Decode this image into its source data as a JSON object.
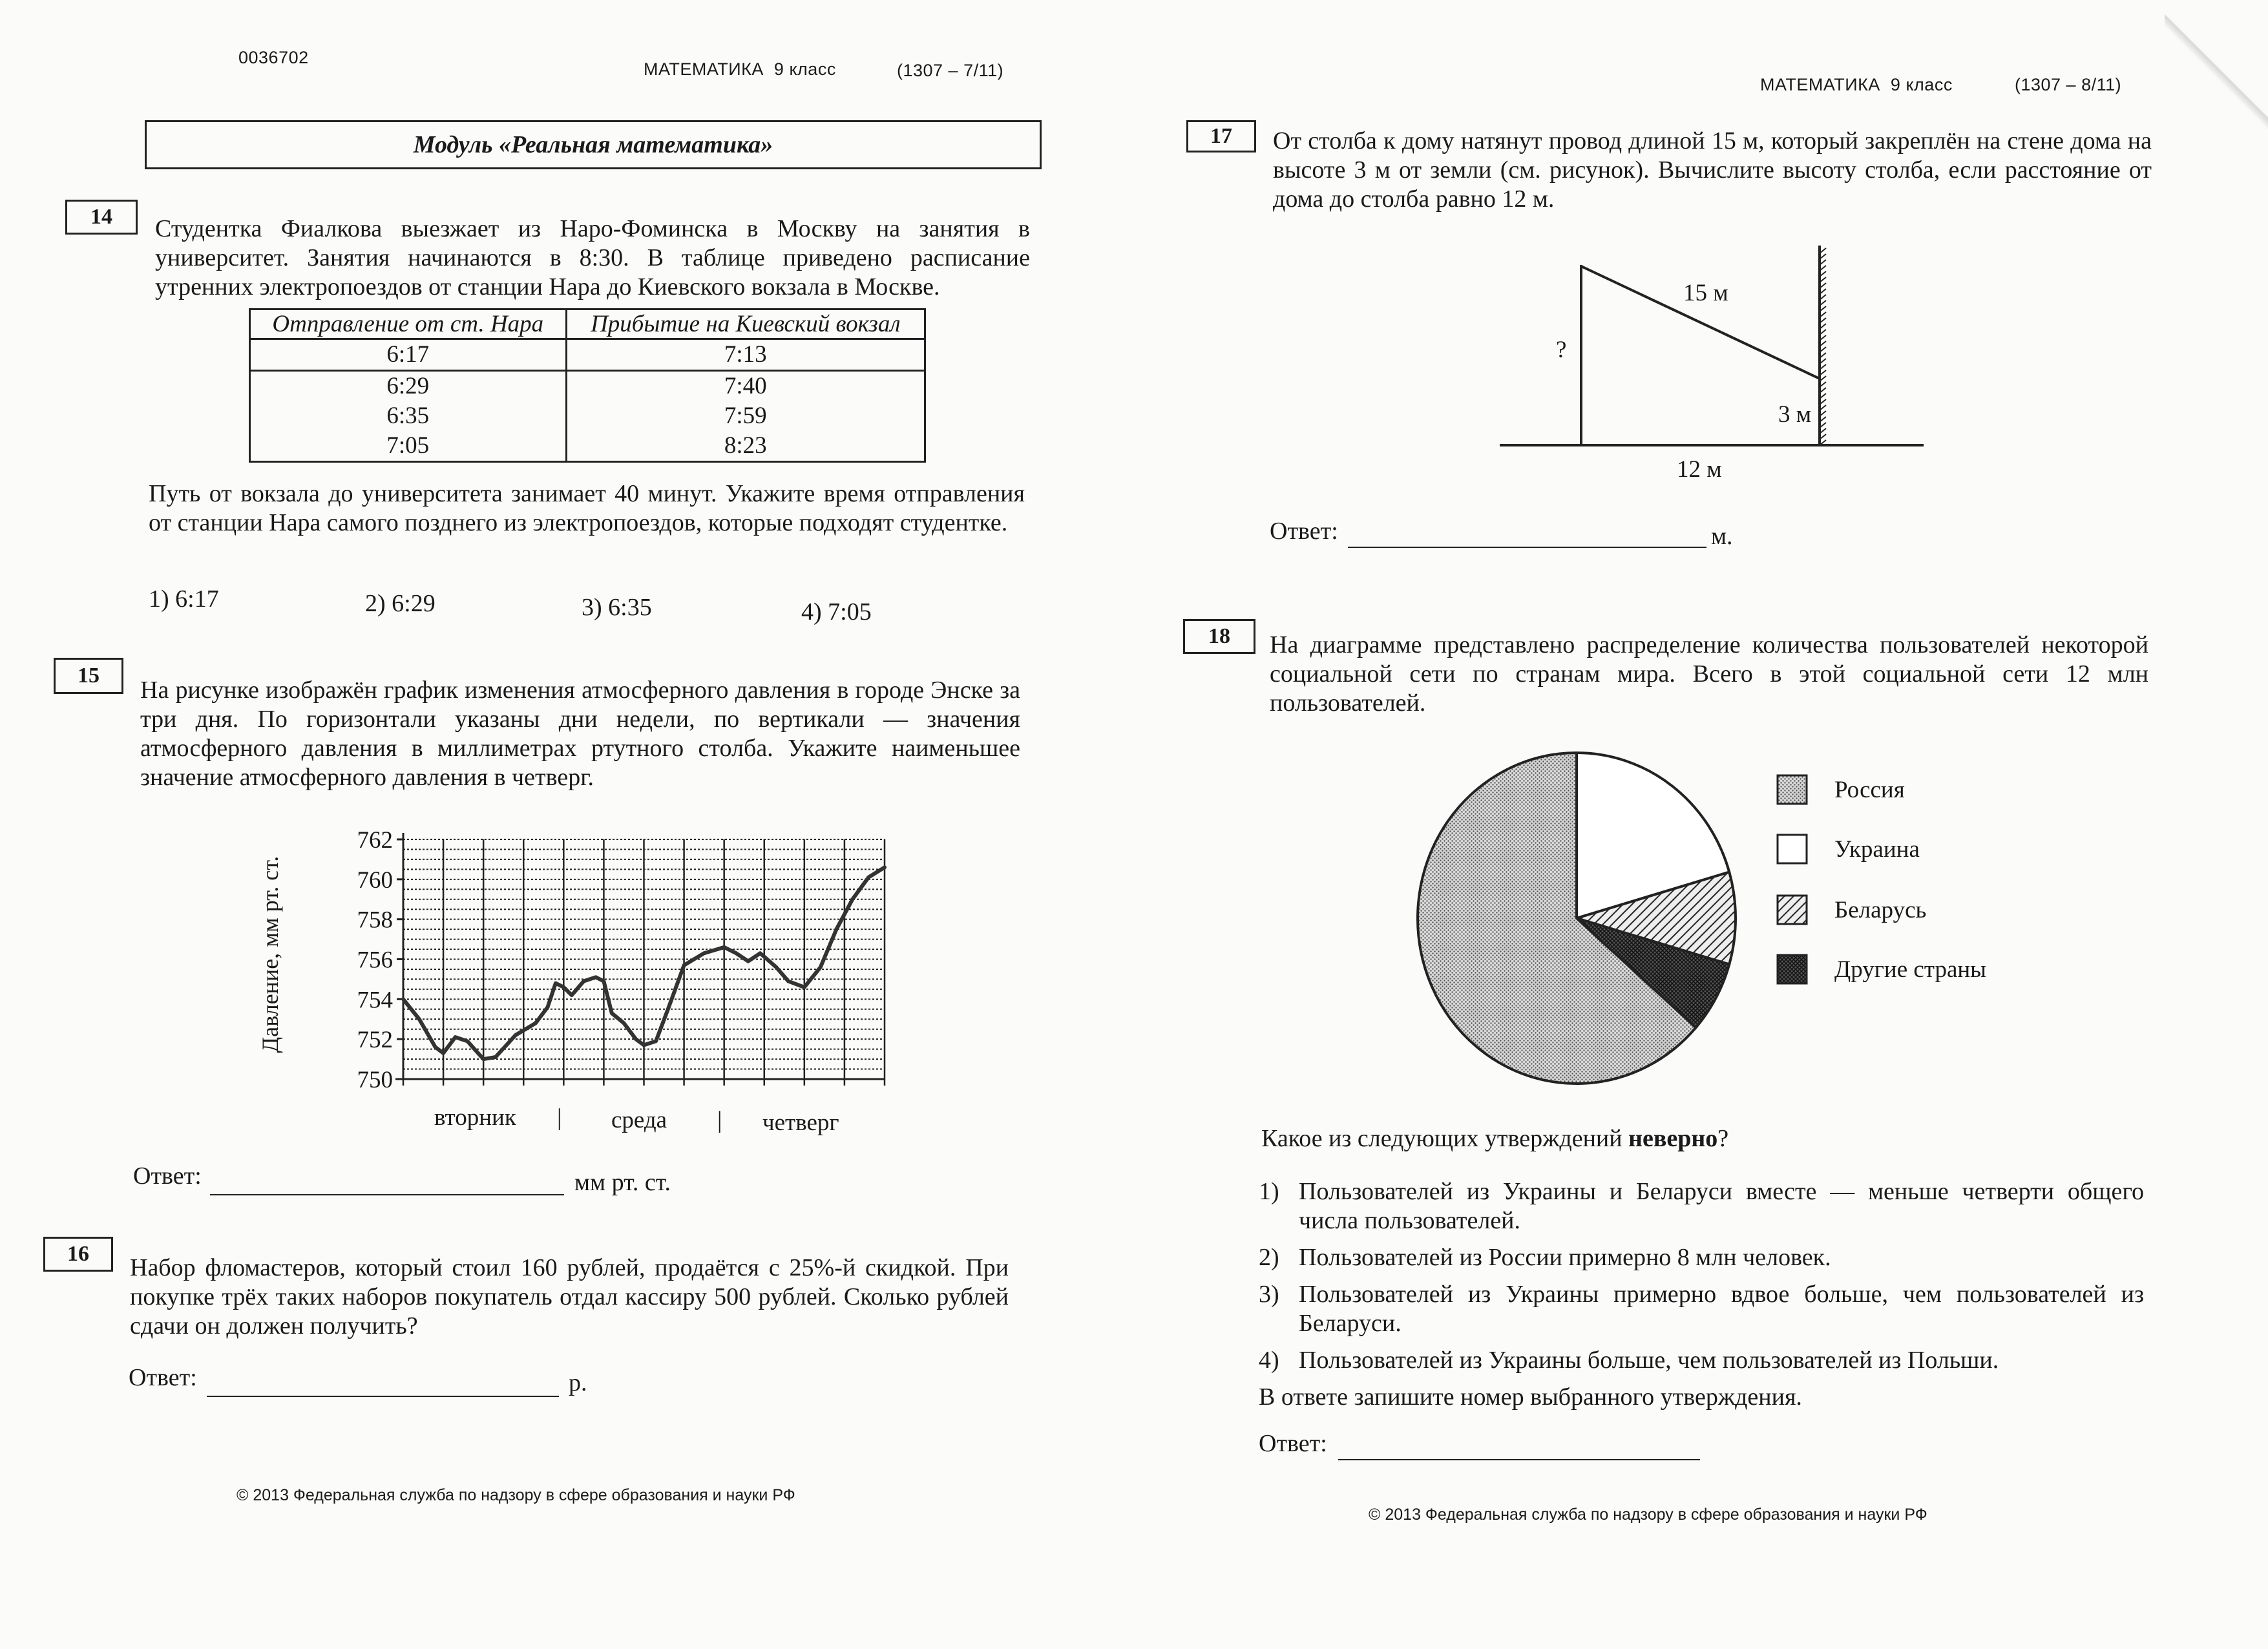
{
  "left_page": {
    "code": "0036702",
    "header": "МАТЕМАТИКА  9 класс",
    "page_ref": "(1307 – 7/11)",
    "module_title": "Модуль «Реальная математика»",
    "task14": {
      "number": "14",
      "text": "Студентка Фиалкова выезжает из Наро-Фоминска в Москву на занятия в университет. Занятия начинаются в 8:30. В таблице приведено расписание утренних электропоездов от станции Нара до Киевского вокзала в Москве.",
      "table": {
        "headers": [
          "Отправление от ст. Нара",
          "Прибытие на Киевский вокзал"
        ],
        "rows": [
          [
            "6:17",
            "7:13"
          ],
          [
            "6:29",
            "7:40"
          ],
          [
            "6:35",
            "7:59"
          ],
          [
            "7:05",
            "8:23"
          ]
        ]
      },
      "question": "Путь от вокзала до университета занимает 40 минут. Укажите время отправления от станции Нара самого позднего из электропоездов, которые подходят студентке.",
      "options": [
        "1)  6:17",
        "2)  6:29",
        "3)  6:35",
        "4)  7:05"
      ]
    },
    "task15": {
      "number": "15",
      "text": "На рисунке изображён график изменения атмосферного давления в городе Энске за три дня. По горизонтали указаны дни недели, по вертикали — значения атмосферного давления в миллиметрах ртутного столба. Укажите наименьшее значение атмосферного давления в четверг.",
      "answer_label": "Ответ:",
      "answer_unit": "мм рт. ст."
    },
    "task16": {
      "number": "16",
      "text": "Набор фломастеров, который стоил 160 рублей, продаётся с 25%-й скидкой. При покупке трёх таких наборов покупатель отдал кассиру 500 рублей. Сколько рублей сдачи он должен получить?",
      "answer_label": "Ответ:",
      "answer_unit": "р."
    },
    "footer": "© 2013 Федеральная служба по надзору в сфере образования и науки РФ"
  },
  "right_page": {
    "header": "МАТЕМАТИКА  9 класс",
    "page_ref": "(1307 – 8/11)",
    "task17": {
      "number": "17",
      "text": "От столба к дому натянут провод длиной 15 м, который закреплён на стене дома на высоте 3 м от земли (см. рисунок). Вычислите высоту столба, если расстояние от дома до столба равно 12 м.",
      "figure": {
        "wire": "15 м",
        "pole": "?",
        "height": "3 м",
        "distance": "12 м"
      },
      "answer_label": "Ответ:",
      "answer_unit": "м."
    },
    "task18": {
      "number": "18",
      "text": "На диаграмме представлено распределение количества пользователей некоторой социальной сети по странам мира. Всего в этой социальной сети 12 млн пользователей.",
      "question_prefix": "Какое из следующих утверждений ",
      "question_bold": "неверно",
      "question_suffix": "?",
      "options": [
        {
          "n": "1)",
          "text": "Пользователей из Украины и Беларуси вместе — меньше четверти общего числа пользователей."
        },
        {
          "n": "2)",
          "text": "Пользователей из России примерно 8 млн человек."
        },
        {
          "n": "3)",
          "text": "Пользователей из Украины примерно вдвое больше, чем пользователей из Беларуси."
        },
        {
          "n": "4)",
          "text": "Пользователей из Украины больше, чем пользователей из Польши."
        }
      ],
      "instruction": "В ответе запишите номер выбранного утверждения.",
      "answer_label": "Ответ:"
    },
    "footer": "© 2013 Федеральная служба по надзору в сфере образования и науки РФ"
  },
  "chart_data": [
    {
      "type": "line",
      "ylabel": "Давление, мм рт. ст.",
      "ylim": [
        750,
        762
      ],
      "yticks": [
        "750",
        "752",
        "754",
        "756",
        "758",
        "760",
        "762"
      ],
      "xlim": [
        0,
        12
      ],
      "day_labels": [
        "вторник",
        "среда",
        "четверг"
      ],
      "day_separator": "|",
      "grid": true,
      "x": [
        0,
        0.4,
        0.8,
        1.0,
        1.3,
        1.6,
        2.0,
        2.3,
        2.8,
        3.3,
        3.6,
        3.8,
        4.0,
        4.2,
        4.5,
        4.8,
        5.0,
        5.2,
        5.5,
        5.8,
        6.0,
        6.3,
        6.6,
        7.0,
        7.5,
        8.0,
        8.3,
        8.6,
        8.9,
        9.3,
        9.6,
        10.0,
        10.4,
        10.8,
        11.2,
        11.6,
        12.0
      ],
      "y": [
        754,
        753.0,
        751.6,
        751.3,
        752.1,
        751.9,
        751.0,
        751.1,
        752.2,
        752.8,
        753.6,
        754.8,
        754.6,
        754.2,
        754.9,
        755.1,
        754.9,
        753.3,
        752.8,
        752.0,
        751.7,
        751.9,
        753.5,
        755.7,
        756.3,
        756.6,
        756.3,
        755.9,
        756.3,
        755.6,
        754.9,
        754.6,
        755.6,
        757.5,
        759.0,
        760.1,
        760.6
      ]
    },
    {
      "type": "pie",
      "categories": [
        "Украина",
        "Беларусь",
        "Другие страны",
        "Россия"
      ],
      "values": [
        0.205,
        0.09,
        0.07,
        0.635
      ],
      "legend": [
        "Россия",
        "Украина",
        "Беларусь",
        "Другие страны"
      ],
      "legend_placement": "right",
      "start": "12 o'clock, clockwise"
    }
  ]
}
